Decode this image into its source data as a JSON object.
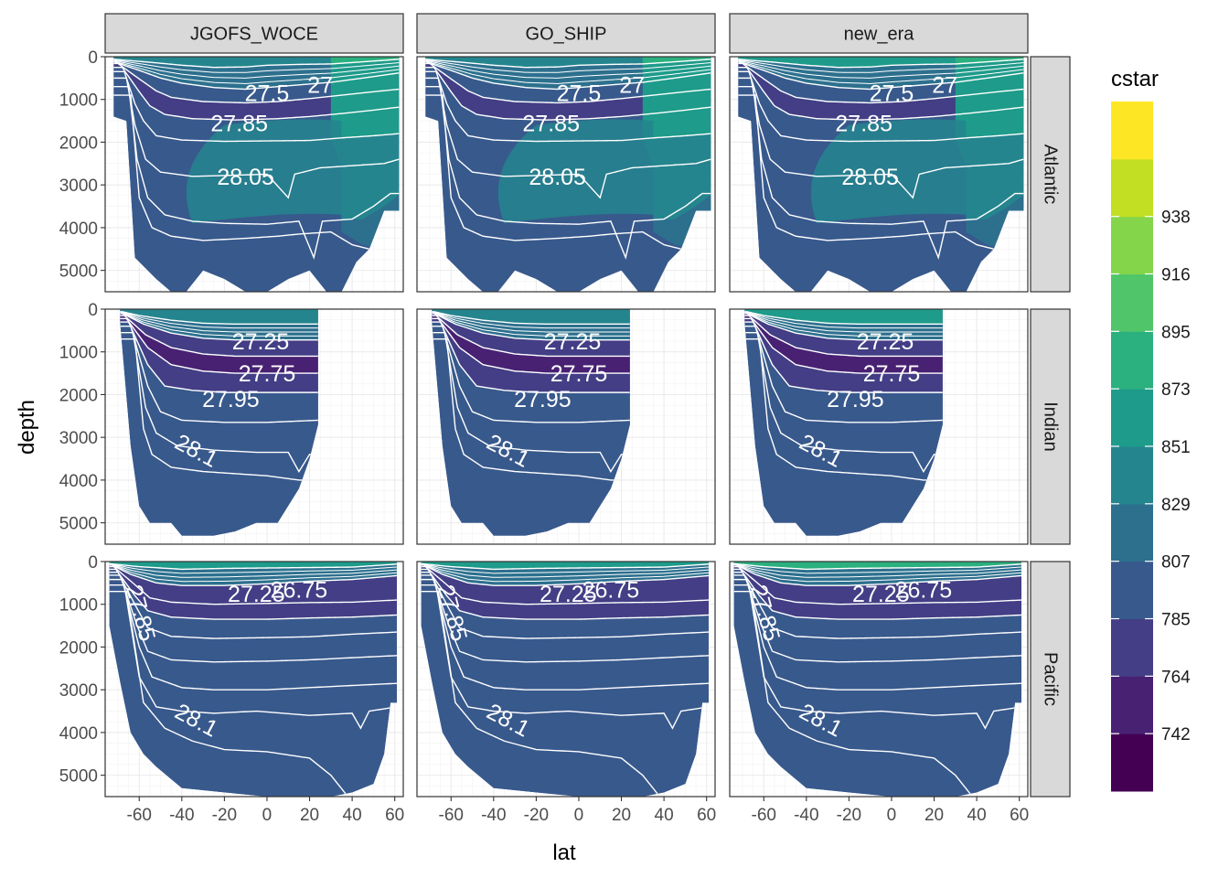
{
  "chart_data": {
    "type": "heatmap",
    "description_free": true,
    "x_label": "lat",
    "y_label": "depth",
    "column_facets": [
      "JGOFS_WOCE",
      "GO_SHIP",
      "new_era"
    ],
    "row_facets": [
      "Atlantic",
      "Indian",
      "Pacific"
    ],
    "x_ticks": [
      -60,
      -40,
      -20,
      0,
      20,
      40,
      60
    ],
    "x_tick_labels": [
      "-60",
      "-40",
      "-20",
      "0",
      "20",
      "40",
      "60"
    ],
    "xlim": [
      -76,
      64
    ],
    "y_ticks": [
      0,
      1000,
      2000,
      3000,
      4000,
      5000
    ],
    "y_tick_labels": [
      "0",
      "1000",
      "2000",
      "3000",
      "4000",
      "5000"
    ],
    "ylim": [
      5500,
      0
    ],
    "y_reversed": true,
    "legend": {
      "title": "cstar",
      "breaks": [
        742,
        764,
        785,
        807,
        829,
        851,
        873,
        895,
        916,
        938
      ],
      "break_labels": [
        "742",
        "764",
        "785",
        "807",
        "829",
        "851",
        "873",
        "895",
        "916",
        "938"
      ],
      "colors": [
        "#440154",
        "#482173",
        "#433E85",
        "#38598C",
        "#2D708E",
        "#25858E",
        "#1E9B8A",
        "#2BB07F",
        "#51C56A",
        "#85D54A",
        "#C2DF23",
        "#FDE725"
      ],
      "placement": "right"
    },
    "contour_labels": {
      "Atlantic": [
        {
          "text": "27.5",
          "lat": 0,
          "depth": 850
        },
        {
          "text": "27",
          "lat": 25,
          "depth": 650
        },
        {
          "text": "27.85",
          "lat": -13,
          "depth": 1550
        },
        {
          "text": "28.05",
          "lat": -10,
          "depth": 2800
        }
      ],
      "Indian": [
        {
          "text": "27.25",
          "lat": -3,
          "depth": 750
        },
        {
          "text": "27.75",
          "lat": 0,
          "depth": 1500
        },
        {
          "text": "27.95",
          "lat": -17,
          "depth": 2100
        },
        {
          "text": "28.1",
          "lat": -33,
          "depth": 3300
        }
      ],
      "Pacific": [
        {
          "text": "27.25",
          "lat": -5,
          "depth": 750
        },
        {
          "text": "26.75",
          "lat": 15,
          "depth": 650
        },
        {
          "text": "27.85",
          "lat": -59,
          "depth": 1200
        },
        {
          "text": "28.1",
          "lat": -33,
          "depth": 3700
        }
      ]
    }
  }
}
